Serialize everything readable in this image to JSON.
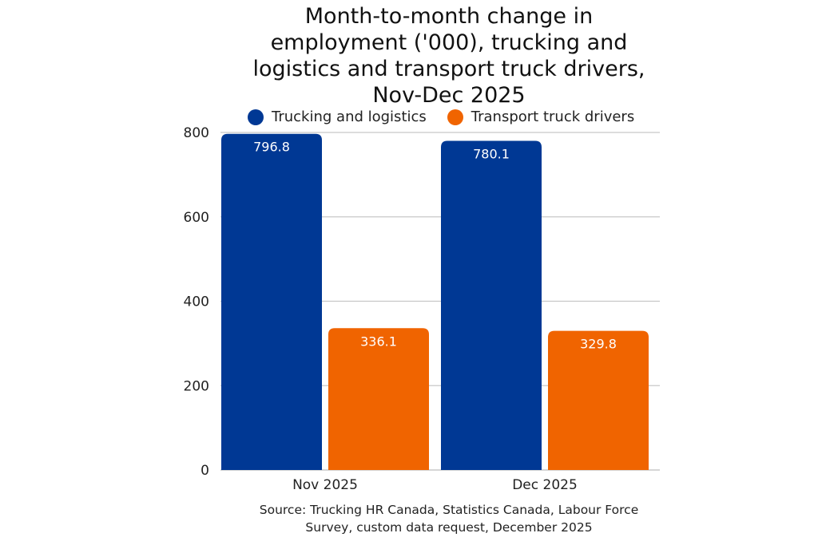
{
  "chart_data": {
    "type": "bar",
    "title_lines": [
      "Month-to-month change in",
      "employment ('000), trucking and",
      "logistics and transport truck drivers,",
      "Nov-Dec 2025"
    ],
    "categories": [
      "Nov 2025",
      "Dec 2025"
    ],
    "series": [
      {
        "name": "Trucking and logistics",
        "color": "#003894",
        "values": [
          796.8,
          780.1
        ],
        "labels": [
          "796.8",
          "780.1"
        ]
      },
      {
        "name": "Transport truck drivers",
        "color": "#F06400",
        "values": [
          336.1,
          329.8
        ],
        "labels": [
          "336.1",
          "329.8"
        ]
      }
    ],
    "xlabel": "",
    "ylabel": "",
    "ylim": [
      0,
      800
    ],
    "yticks": [
      0,
      200,
      400,
      600,
      800
    ],
    "ytick_labels": [
      "0",
      "200",
      "400",
      "600",
      "800"
    ],
    "grid": true,
    "legend_position": "top",
    "source": [
      "Source: Trucking HR Canada, Statistics Canada, Labour Force",
      "Survey, custom data request, December 2025"
    ]
  }
}
